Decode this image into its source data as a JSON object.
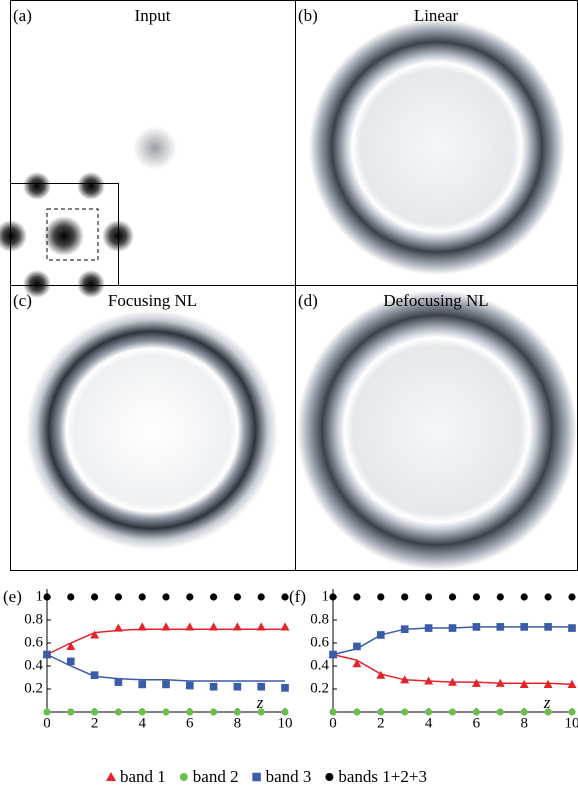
{
  "panels": [
    {
      "label": "(a)",
      "title": "Input"
    },
    {
      "label": "(b)",
      "title": "Linear"
    },
    {
      "label": "(c)",
      "title": "Focusing NL"
    },
    {
      "label": "(d)",
      "title": "Defocusing NL"
    }
  ],
  "chart_data": [
    {
      "type": "line",
      "panel_label": "(e)",
      "x_label": "z",
      "x": [
        0,
        1,
        2,
        3,
        4,
        5,
        6,
        7,
        8,
        9,
        10
      ],
      "xlim": [
        0,
        10
      ],
      "xticks": [
        0,
        2,
        4,
        6,
        8,
        10
      ],
      "ylim": [
        0,
        1
      ],
      "yticks": [
        0.2,
        0.4,
        0.6,
        0.8,
        1
      ],
      "series": [
        {
          "name": "band 1",
          "color": "#e3242b",
          "marker": "triangle",
          "values": [
            0.5,
            0.57,
            0.67,
            0.73,
            0.74,
            0.74,
            0.74,
            0.74,
            0.74,
            0.74,
            0.74
          ],
          "line": [
            0.5,
            0.6,
            0.69,
            0.71,
            0.72,
            0.72,
            0.72,
            0.72,
            0.72,
            0.72,
            0.72
          ]
        },
        {
          "name": "band 2",
          "color": "#6abf4b",
          "marker": "circle",
          "values": [
            0,
            0,
            0,
            0,
            0,
            0,
            0,
            0,
            0,
            0,
            0
          ]
        },
        {
          "name": "band 3",
          "color": "#3b5ca8",
          "marker": "square",
          "values": [
            0.5,
            0.44,
            0.32,
            0.26,
            0.24,
            0.24,
            0.23,
            0.22,
            0.22,
            0.22,
            0.21
          ],
          "line": [
            0.5,
            0.4,
            0.31,
            0.29,
            0.28,
            0.28,
            0.27,
            0.27,
            0.27,
            0.27,
            0.27
          ]
        },
        {
          "name": "bands 1+2+3",
          "color": "#000000",
          "marker": "circle",
          "values": [
            1,
            1,
            1,
            1,
            1,
            1,
            1,
            1,
            1,
            1,
            1
          ]
        }
      ]
    },
    {
      "type": "line",
      "panel_label": "(f)",
      "x_label": "z",
      "x": [
        0,
        1,
        2,
        3,
        4,
        5,
        6,
        7,
        8,
        9,
        10
      ],
      "xlim": [
        0,
        10
      ],
      "xticks": [
        0,
        2,
        4,
        6,
        8,
        10
      ],
      "ylim": [
        0,
        1
      ],
      "yticks": [
        0.2,
        0.4,
        0.6,
        0.8,
        1
      ],
      "series": [
        {
          "color": "#e3242b",
          "marker": "triangle",
          "values": [
            0.5,
            0.42,
            0.32,
            0.28,
            0.27,
            0.26,
            0.25,
            0.25,
            0.24,
            0.24,
            0.24
          ],
          "line": [
            0.5,
            0.45,
            0.33,
            0.28,
            0.27,
            0.26,
            0.26,
            0.25,
            0.25,
            0.25,
            0.24
          ]
        },
        {
          "color": "#6abf4b",
          "marker": "circle",
          "values": [
            0,
            0,
            0,
            0,
            0,
            0,
            0,
            0,
            0,
            0,
            0
          ]
        },
        {
          "color": "#3b5ca8",
          "marker": "square",
          "values": [
            0.5,
            0.57,
            0.67,
            0.72,
            0.73,
            0.73,
            0.74,
            0.74,
            0.74,
            0.74,
            0.73
          ],
          "line": [
            0.5,
            0.55,
            0.67,
            0.72,
            0.73,
            0.73,
            0.74,
            0.74,
            0.74,
            0.74,
            0.74
          ]
        },
        {
          "color": "#000000",
          "marker": "circle",
          "values": [
            1,
            1,
            1,
            1,
            1,
            1,
            1,
            1,
            1,
            1,
            1
          ]
        }
      ]
    }
  ]
}
